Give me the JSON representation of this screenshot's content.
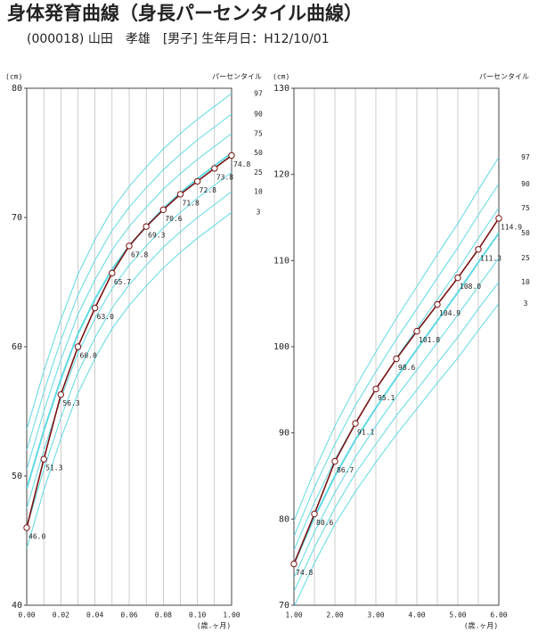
{
  "header": {
    "title": "身体発育曲線（身長パーセンタイル曲線）",
    "subtitle": "(000018) 山田　孝雄　[男子] 生年月日：H12/10/01"
  },
  "chart_data": [
    {
      "type": "line",
      "y_unit": "(cm)",
      "percentile_heading": "パーセンタイル",
      "x_label": "(歳.ヶ月)",
      "x": [
        0,
        1,
        2,
        3,
        4,
        5,
        6,
        7,
        8,
        9,
        10,
        11,
        12
      ],
      "xlim": [
        0,
        12
      ],
      "xticks": [
        {
          "value": 0,
          "label": "0.00"
        },
        {
          "value": 2,
          "label": "0.02"
        },
        {
          "value": 4,
          "label": "0.04"
        },
        {
          "value": 6,
          "label": "0.06"
        },
        {
          "value": 8,
          "label": "0.08"
        },
        {
          "value": 10,
          "label": "0.10"
        },
        {
          "value": 12,
          "label": "1.00"
        }
      ],
      "x_minor_ticks": [
        1,
        3,
        5,
        7,
        9,
        11
      ],
      "ylim": [
        40,
        80
      ],
      "yticks": [
        40,
        50,
        60,
        70,
        80
      ],
      "curve_color": "#5fd9e3",
      "series": [
        {
          "name": "97",
          "values": [
            53.6,
            58.1,
            62.1,
            65.6,
            68.3,
            70.6,
            72.4,
            73.9,
            75.3,
            76.5,
            77.6,
            78.6,
            79.6
          ]
        },
        {
          "name": "90",
          "values": [
            52.0,
            56.5,
            60.5,
            64.0,
            66.7,
            69.0,
            70.8,
            72.3,
            73.7,
            74.9,
            76.0,
            77.0,
            78.0
          ]
        },
        {
          "name": "75",
          "values": [
            50.5,
            55.0,
            59.0,
            62.5,
            65.2,
            67.5,
            69.3,
            70.8,
            72.2,
            73.4,
            74.5,
            75.5,
            76.5
          ]
        },
        {
          "name": "50",
          "values": [
            49.0,
            53.5,
            57.5,
            61.0,
            63.7,
            66.0,
            67.8,
            69.3,
            70.7,
            71.9,
            73.0,
            74.0,
            75.0
          ]
        },
        {
          "name": "25",
          "values": [
            47.5,
            52.0,
            56.0,
            59.5,
            62.2,
            64.5,
            66.3,
            67.8,
            69.2,
            70.4,
            71.5,
            72.5,
            73.5
          ]
        },
        {
          "name": "10",
          "values": [
            46.0,
            50.5,
            54.5,
            58.0,
            60.7,
            63.0,
            64.8,
            66.3,
            67.7,
            68.9,
            70.0,
            71.0,
            72.0
          ]
        },
        {
          "name": "3",
          "values": [
            44.4,
            48.9,
            52.9,
            56.4,
            59.1,
            61.4,
            63.2,
            64.7,
            66.1,
            67.3,
            68.4,
            69.4,
            70.4
          ]
        }
      ],
      "measurements": {
        "color": "#7a1414",
        "values": [
          46.0,
          51.3,
          56.3,
          60.0,
          63.0,
          65.7,
          67.8,
          69.3,
          70.6,
          71.8,
          72.8,
          73.8,
          74.8
        ],
        "value_labels": [
          "46.0",
          "51.3",
          "56.3",
          "60.0",
          "63.0",
          "65.7",
          "67.8",
          "69.3",
          "70.6",
          "71.8",
          "72.8",
          "73.8",
          "74.8"
        ]
      }
    },
    {
      "type": "line",
      "y_unit": "(cm)",
      "percentile_heading": "パーセンタイル",
      "x_label": "(歳.ヶ月)",
      "x": [
        1,
        1.5,
        2,
        2.5,
        3,
        3.5,
        4,
        4.5,
        5,
        5.5,
        6
      ],
      "xlim": [
        1,
        6
      ],
      "xticks": [
        {
          "value": 1,
          "label": "1.00"
        },
        {
          "value": 2,
          "label": "2.00"
        },
        {
          "value": 3,
          "label": "3.00"
        },
        {
          "value": 4,
          "label": "4.00"
        },
        {
          "value": 5,
          "label": "5.00"
        },
        {
          "value": 6,
          "label": "6.00"
        }
      ],
      "x_minor_ticks": [
        1.5,
        2.5,
        3.5,
        4.5,
        5.5
      ],
      "ylim": [
        70,
        130
      ],
      "yticks": [
        70,
        80,
        90,
        100,
        110,
        120,
        130
      ],
      "curve_color": "#5fd9e3",
      "series": [
        {
          "name": "97",
          "values": [
            79.8,
            85.6,
            90.8,
            95.3,
            99.4,
            103.3,
            107.0,
            110.7,
            114.3,
            118.2,
            122.0
          ]
        },
        {
          "name": "90",
          "values": [
            78.0,
            83.7,
            88.7,
            93.2,
            97.1,
            100.9,
            104.4,
            108.0,
            111.5,
            115.3,
            118.9
          ]
        },
        {
          "name": "75",
          "values": [
            76.4,
            81.9,
            86.9,
            91.2,
            95.0,
            98.7,
            102.1,
            105.5,
            108.9,
            112.6,
            116.1
          ]
        },
        {
          "name": "50",
          "values": [
            74.8,
            80.2,
            85.0,
            89.2,
            92.9,
            96.4,
            99.7,
            103.0,
            106.3,
            109.8,
            113.2
          ]
        },
        {
          "name": "25",
          "values": [
            73.2,
            78.5,
            83.1,
            87.2,
            90.8,
            94.2,
            97.3,
            100.5,
            103.7,
            107.0,
            110.3
          ]
        },
        {
          "name": "10",
          "values": [
            71.6,
            76.7,
            81.3,
            85.3,
            88.7,
            92.0,
            95.0,
            98.1,
            101.1,
            104.4,
            107.5
          ]
        },
        {
          "name": "3",
          "values": [
            69.8,
            74.9,
            79.4,
            83.2,
            86.6,
            89.8,
            92.8,
            95.8,
            98.7,
            101.9,
            105.0
          ]
        }
      ],
      "measurements": {
        "color": "#7a1414",
        "values": [
          74.8,
          80.6,
          86.7,
          91.1,
          95.1,
          98.6,
          101.8,
          104.9,
          108.0,
          111.3,
          114.9
        ],
        "value_labels": [
          "74.8",
          "80.6",
          "86.7",
          "91.1",
          "95.1",
          "98.6",
          "101.8",
          "104.9",
          "108.0",
          "111.3",
          "114.9"
        ]
      }
    }
  ]
}
